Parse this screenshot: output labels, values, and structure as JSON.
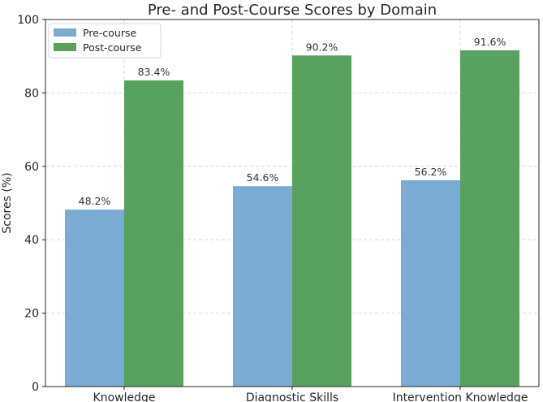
{
  "chart_data": {
    "type": "bar",
    "title": "Pre- and Post-Course Scores by Domain",
    "xlabel": "",
    "ylabel": "Scores (%)",
    "ylim": [
      0,
      100
    ],
    "yticks": [
      0,
      20,
      40,
      60,
      80,
      100
    ],
    "categories": [
      "Knowledge",
      "Diagnostic Skills",
      "Intervention Knowledge"
    ],
    "series": [
      {
        "name": "Pre-course",
        "values": [
          48.2,
          54.6,
          56.2
        ],
        "labels": [
          "48.2%",
          "54.6%",
          "56.2%"
        ],
        "color": "#7aabd2"
      },
      {
        "name": "Post-course",
        "values": [
          83.4,
          90.2,
          91.6
        ],
        "labels": [
          "83.4%",
          "90.2%",
          "91.6%"
        ],
        "color": "#58a25d"
      }
    ],
    "grid": true,
    "legend": "top-left"
  }
}
